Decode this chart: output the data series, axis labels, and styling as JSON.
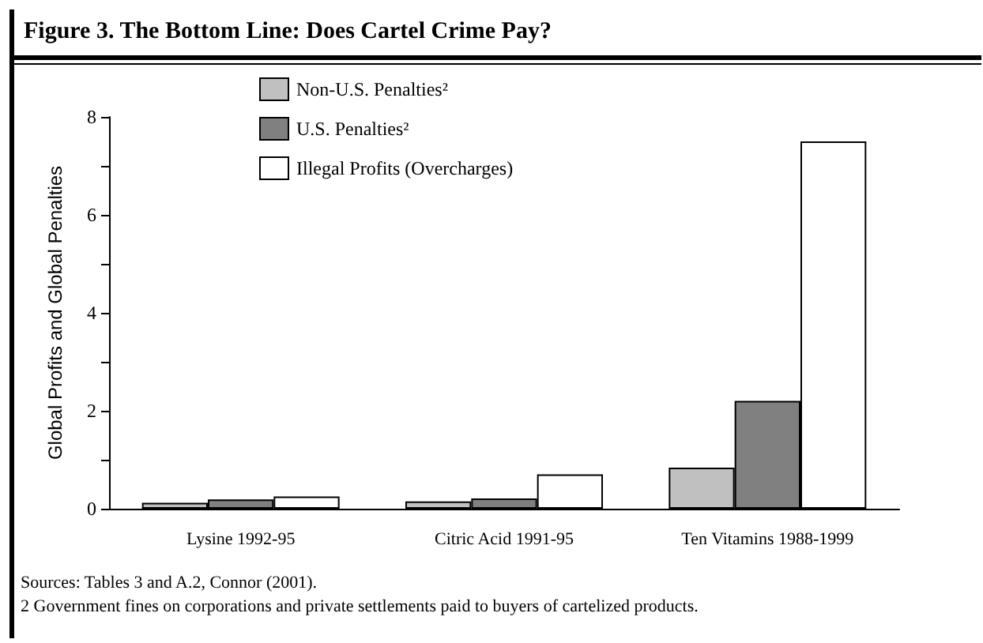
{
  "chart_data": {
    "type": "bar",
    "title": "Figure 3. The Bottom Line: Does Cartel Crime Pay?",
    "ylabel": "Global Profits and Global Penalties",
    "categories": [
      "Lysine 1992-95",
      "Citric Acid 1991-95",
      "Ten Vitamins 1988-1999"
    ],
    "series": [
      {
        "name": "Non-U.S. Penalties²",
        "color": "#c0c0c0",
        "values": [
          0.12,
          0.15,
          0.84
        ]
      },
      {
        "name": "U.S. Penalties²",
        "color": "#808080",
        "values": [
          0.19,
          0.21,
          2.2
        ]
      },
      {
        "name": "Illegal Profits (Overcharges)",
        "color": "#ffffff",
        "values": [
          0.25,
          0.7,
          7.5
        ]
      }
    ],
    "ylim": [
      0,
      8
    ],
    "yticks": [
      0,
      {
        "value": 1,
        "label": null
      },
      2,
      {
        "value": 3,
        "label": null
      },
      4,
      {
        "value": 5,
        "label": null
      },
      6,
      {
        "value": 7,
        "label": null
      },
      8
    ],
    "grid": false,
    "legend": "top",
    "annotations": [
      "Sources: Tables 3 and A.2, Connor (2001).",
      "2 Government fines on corporations and private settlements paid to buyers of cartelized products."
    ]
  }
}
